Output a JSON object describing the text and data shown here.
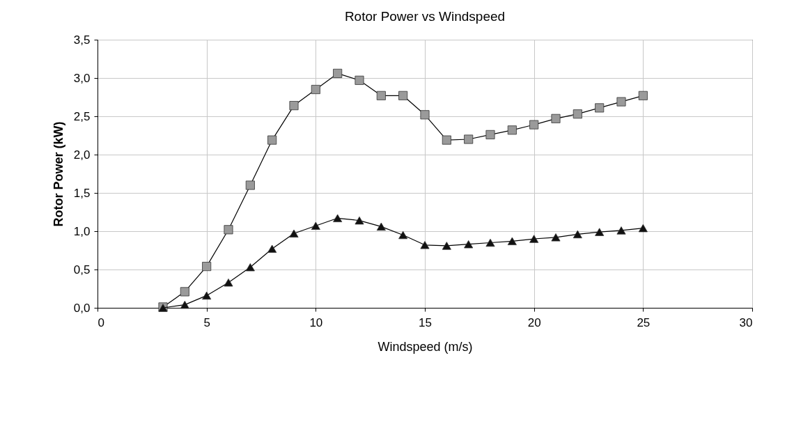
{
  "chart_data": {
    "type": "line",
    "title": "Rotor Power vs Windspeed",
    "xlabel": "Windspeed (m/s)",
    "ylabel": "Rotor Power (kW)",
    "x": [
      3,
      4,
      5,
      6,
      7,
      8,
      9,
      10,
      11,
      12,
      13,
      14,
      15,
      16,
      17,
      18,
      19,
      20,
      21,
      22,
      23,
      24,
      25
    ],
    "series": [
      {
        "color": "#9a9a9a",
        "marker": "square",
        "values": [
          0.01,
          0.21,
          0.54,
          1.02,
          1.6,
          2.19,
          2.64,
          2.85,
          3.06,
          2.97,
          2.77,
          2.77,
          2.52,
          2.19,
          2.2,
          2.26,
          2.32,
          2.39,
          2.47,
          2.53,
          2.61,
          2.69,
          2.77
        ]
      },
      {
        "color": "#111111",
        "marker": "triangle",
        "values": [
          0.0,
          0.04,
          0.16,
          0.33,
          0.53,
          0.77,
          0.97,
          1.07,
          1.17,
          1.14,
          1.06,
          0.95,
          0.82,
          0.81,
          0.83,
          0.85,
          0.87,
          0.9,
          0.92,
          0.96,
          0.99,
          1.01,
          1.04
        ]
      }
    ],
    "xlim": [
      0,
      30
    ],
    "xticks": [
      0,
      5,
      10,
      15,
      20,
      25,
      30
    ],
    "ylim": [
      0,
      3.5
    ],
    "yticks": [
      {
        "value": 0,
        "label": "0,0"
      },
      {
        "value": 0.5,
        "label": "0,5"
      },
      {
        "value": 1,
        "label": "1,0"
      },
      {
        "value": 1.5,
        "label": "1,5"
      },
      {
        "value": 2,
        "label": "2,0"
      },
      {
        "value": 2.5,
        "label": "2,5"
      },
      {
        "value": 3,
        "label": "3,0"
      },
      {
        "value": 3.5,
        "label": "3,5"
      }
    ],
    "grid": true
  }
}
